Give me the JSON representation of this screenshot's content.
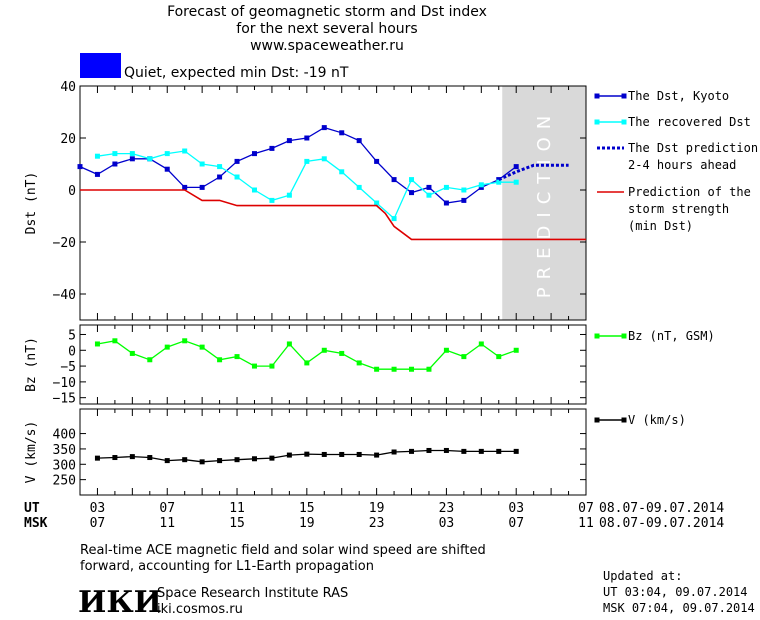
{
  "title_lines": [
    "Forecast of geomagnetic storm and Dst index",
    "for the next several hours",
    "www.spaceweather.ru"
  ],
  "status": {
    "label": "Quiet, expected min Dst: -19 nT",
    "color": "#0000ff"
  },
  "prediction_label": "PREDICTION",
  "footer": {
    "note_lines": [
      "Real-time ACE magnetic field and solar wind speed are shifted",
      "forward, accounting for L1-Earth propagation"
    ],
    "logo_text": "ИКИ",
    "org_name": "Space Research Institute RAS",
    "org_url": "iki.cosmos.ru",
    "updated_title": "Updated at:",
    "updated_ut": "UT   03:04, 09.07.2014",
    "updated_msk": "MSK 07:04, 09.07.2014"
  },
  "chart_data": [
    {
      "type": "line",
      "ylabel": "Dst (nT)",
      "ylim": [
        -50,
        40
      ],
      "yticks": [
        -40,
        -20,
        0,
        20,
        40
      ],
      "xlim": [
        2,
        31
      ],
      "legend_position": "right",
      "series": [
        {
          "name": "The Dst, Kyoto",
          "color": "#0000cc",
          "marker": "square",
          "x": [
            2,
            3,
            4,
            5,
            6,
            7,
            8,
            9,
            10,
            11,
            12,
            13,
            14,
            15,
            16,
            17,
            18,
            19,
            20,
            21,
            22,
            23,
            24,
            25,
            26,
            27
          ],
          "y": [
            9,
            6,
            10,
            12,
            12,
            8,
            1,
            1,
            5,
            11,
            14,
            16,
            19,
            20,
            24,
            22,
            19,
            11,
            4,
            -1,
            1,
            -5,
            -4,
            1,
            4,
            9
          ]
        },
        {
          "name": "The recovered Dst",
          "color": "#00ffff",
          "marker": "square",
          "x": [
            3,
            4,
            5,
            6,
            7,
            8,
            9,
            10,
            11,
            12,
            13,
            14,
            15,
            16,
            17,
            18,
            19,
            20,
            21,
            22,
            23,
            24,
            25,
            26,
            27
          ],
          "y": [
            13,
            14,
            14,
            12,
            14,
            15,
            10,
            9,
            5,
            0,
            -4,
            -2,
            11,
            12,
            7,
            1,
            -5,
            -11,
            4,
            -2,
            1,
            0,
            2,
            3,
            3
          ]
        },
        {
          "name": "The Dst prediction\n2-4 hours ahead",
          "color": "#0000cc",
          "dash": true,
          "x": [
            26,
            27,
            28,
            29,
            30
          ],
          "y": [
            4,
            7,
            9.5,
            9.5,
            9.5
          ]
        },
        {
          "name": "Prediction of the\nstorm strength\n(min Dst)",
          "color": "#dd0000",
          "step": true,
          "x": [
            2,
            8,
            9,
            10,
            11,
            12,
            19,
            19.5,
            20,
            21,
            31
          ],
          "y": [
            0,
            0,
            -4,
            -4,
            -6,
            -6,
            -6,
            -9,
            -14,
            -19,
            -19
          ]
        }
      ]
    },
    {
      "type": "line",
      "ylabel": "Bz (nT)",
      "ylim": [
        -17,
        8
      ],
      "yticks": [
        -15,
        -10,
        -5,
        0,
        5
      ],
      "series": [
        {
          "name": "Bz (nT, GSM)",
          "color": "#00ff00",
          "marker": "square",
          "x": [
            3,
            4,
            5,
            6,
            7,
            8,
            9,
            10,
            11,
            12,
            13,
            14,
            15,
            16,
            17,
            18,
            19,
            20,
            21,
            22,
            23,
            24,
            25,
            26,
            27
          ],
          "y": [
            2,
            3,
            -1,
            -3,
            1,
            3,
            1,
            -3,
            -2,
            -5,
            -5,
            2,
            -4,
            0,
            -1,
            -4,
            -6,
            -6,
            -6,
            -6,
            0,
            -2,
            2,
            -2,
            0
          ]
        }
      ]
    },
    {
      "type": "line",
      "ylabel": "V (km/s)",
      "ylim": [
        200,
        480
      ],
      "yticks": [
        250,
        300,
        350,
        400
      ],
      "x_axis": {
        "ut_ticks": [
          "03",
          "07",
          "11",
          "15",
          "19",
          "23",
          "03",
          "07"
        ],
        "msk_ticks": [
          "07",
          "11",
          "15",
          "19",
          "23",
          "03",
          "07",
          "11"
        ],
        "ut_label": "UT",
        "msk_label": "MSK",
        "date_range": "08.07-09.07.2014"
      },
      "series": [
        {
          "name": "V (km/s)",
          "color": "#000000",
          "marker": "square",
          "x": [
            3,
            4,
            5,
            6,
            7,
            8,
            9,
            10,
            11,
            12,
            13,
            14,
            15,
            16,
            17,
            18,
            19,
            20,
            21,
            22,
            23,
            24,
            25,
            26,
            27
          ],
          "y": [
            320,
            322,
            325,
            322,
            312,
            315,
            308,
            312,
            315,
            318,
            320,
            330,
            333,
            332,
            332,
            332,
            330,
            340,
            342,
            345,
            345,
            342,
            342,
            342,
            342
          ]
        }
      ]
    }
  ]
}
